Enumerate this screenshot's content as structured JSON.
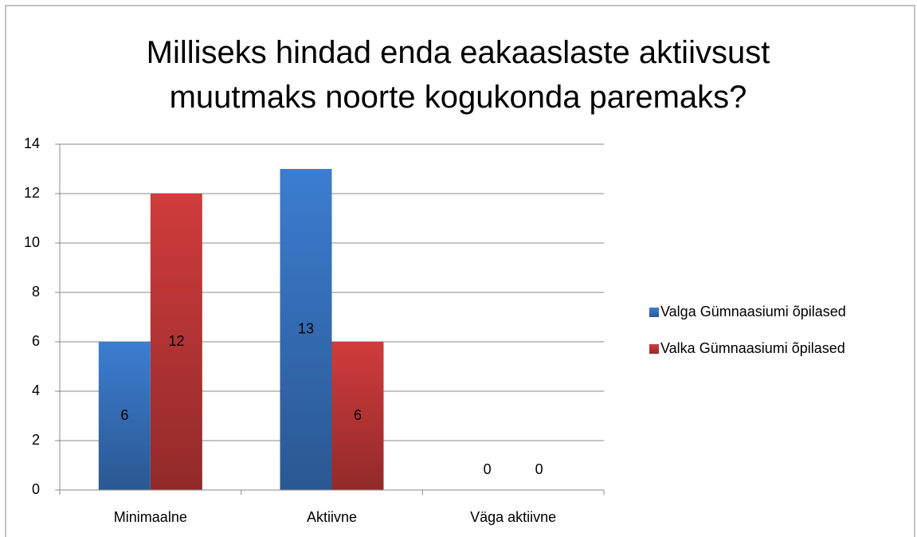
{
  "chart_data": {
    "type": "bar",
    "title": "Milliseks hindad enda eakaaslaste aktiivsust muutmaks noorte kogukonda paremaks?",
    "categories": [
      "Minimaalne",
      "Aktiivne",
      "Väga aktiivne"
    ],
    "series": [
      {
        "name": "Valga Gümnaasiumi õpilased",
        "color": "#3c7dd0",
        "values": [
          6,
          13,
          0
        ]
      },
      {
        "name": "Valka Gümnaasiumi õpilased",
        "color": "#d03c3c",
        "values": [
          12,
          6,
          0
        ]
      }
    ],
    "ylim": [
      0,
      14
    ],
    "yticks": [
      0,
      2,
      4,
      6,
      8,
      10,
      12,
      14
    ],
    "grid": true,
    "legend": "right"
  }
}
